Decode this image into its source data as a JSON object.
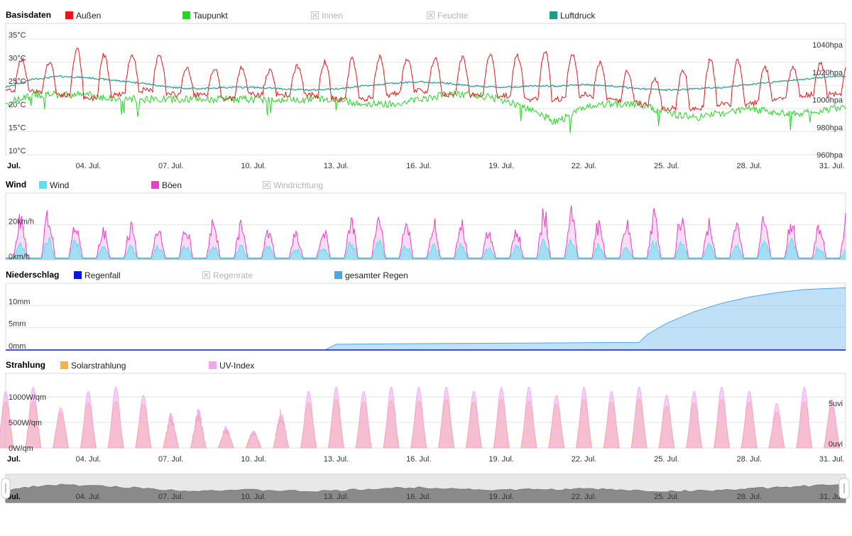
{
  "x_axis": {
    "start_label": "Jul.",
    "labels": [
      "04. Jul.",
      "07. Jul.",
      "10. Jul.",
      "13. Jul.",
      "16. Jul.",
      "19. Jul.",
      "22. Jul.",
      "25. Jul.",
      "28. Jul.",
      "31. Jul."
    ],
    "domain": [
      1,
      31.5
    ]
  },
  "navigator": {
    "start_label": "Jul.",
    "labels": [
      "04. Jul.",
      "07. Jul.",
      "10. Jul.",
      "13. Jul.",
      "16. Jul.",
      "19. Jul.",
      "22. Jul.",
      "25. Jul.",
      "28. Jul.",
      "31. Jul."
    ]
  },
  "chart_data": [
    {
      "type": "line",
      "title": "Basisdaten",
      "legend": [
        {
          "name": "Außen",
          "color": "#e8161a",
          "enabled": true
        },
        {
          "name": "Taupunkt",
          "color": "#26d626",
          "enabled": true
        },
        {
          "name": "Innen",
          "color": "#cccccc",
          "enabled": false
        },
        {
          "name": "Feuchte",
          "color": "#cccccc",
          "enabled": false
        },
        {
          "name": "Luftdruck",
          "color": "#22998a",
          "enabled": true
        }
      ],
      "y_left": {
        "ticks": [
          "10°C",
          "15°C",
          "20°C",
          "25°C",
          "30°C",
          "35°C"
        ],
        "range": [
          10,
          35
        ]
      },
      "y_right": {
        "ticks": [
          "960hpa",
          "980hpa",
          "1000hpa",
          "1020hpa",
          "1040hpa"
        ],
        "range": [
          960,
          1040
        ]
      },
      "series": [
        {
          "name": "Außen",
          "unit": "°C",
          "x": [
            1,
            2,
            3,
            4,
            5,
            6,
            7,
            8,
            9,
            10,
            11,
            12,
            13,
            14,
            15,
            16,
            17,
            18,
            19,
            20,
            21,
            22,
            23,
            24,
            25,
            26,
            27,
            28,
            29,
            30,
            31
          ],
          "max": [
            33,
            29,
            31,
            34,
            30,
            33,
            31,
            27,
            30,
            28,
            28,
            30,
            30,
            31,
            31,
            30,
            31,
            31,
            32,
            31,
            33,
            31,
            29,
            27,
            26,
            30,
            31,
            30,
            28,
            29,
            30
          ],
          "min": [
            24,
            24,
            23,
            22,
            23,
            24,
            23,
            23,
            22,
            23,
            23,
            23,
            22,
            22,
            23,
            24,
            23,
            23,
            23,
            22,
            22,
            23,
            22,
            21,
            20,
            20,
            21,
            21,
            22,
            23,
            23
          ]
        },
        {
          "name": "Taupunkt",
          "unit": "°C",
          "x": [
            1,
            2,
            3,
            4,
            5,
            6,
            7,
            8,
            9,
            10,
            11,
            12,
            13,
            14,
            15,
            16,
            17,
            18,
            19,
            20,
            21,
            22,
            23,
            24,
            25,
            26,
            27,
            28,
            29,
            30,
            31
          ],
          "values": [
            21,
            23,
            23,
            23,
            22,
            22,
            22,
            22,
            22,
            22,
            22,
            22,
            22,
            21,
            21,
            22,
            23,
            23,
            22,
            20,
            17,
            20,
            21,
            21,
            19,
            18,
            19,
            20,
            19,
            19,
            20
          ]
        },
        {
          "name": "Luftdruck",
          "unit": "hpa",
          "x": [
            1,
            2,
            3,
            4,
            5,
            6,
            7,
            8,
            9,
            10,
            11,
            12,
            13,
            14,
            15,
            16,
            17,
            18,
            19,
            20,
            21,
            22,
            23,
            24,
            25,
            26,
            27,
            28,
            29,
            30,
            31
          ],
          "values": [
            1009,
            1015,
            1017,
            1016,
            1014,
            1012,
            1009,
            1008,
            1009,
            1009,
            1008,
            1007,
            1008,
            1010,
            1012,
            1013,
            1012,
            1010,
            1009,
            1010,
            1010,
            1011,
            1010,
            1008,
            1007,
            1008,
            1009,
            1011,
            1013,
            1015,
            1017
          ]
        }
      ]
    },
    {
      "type": "area",
      "title": "Wind",
      "legend": [
        {
          "name": "Wind",
          "color": "#5be0ee",
          "enabled": true
        },
        {
          "name": "Böen",
          "color": "#ea3ec7",
          "enabled": true
        },
        {
          "name": "Windrichtung",
          "color": "#cccccc",
          "enabled": false
        }
      ],
      "y_left": {
        "ticks": [
          "0km/h",
          "20km/h"
        ],
        "range": [
          0,
          40
        ]
      },
      "series": [
        {
          "name": "Wind",
          "unit": "km/h",
          "x": [
            1,
            2,
            3,
            4,
            5,
            6,
            7,
            8,
            9,
            10,
            11,
            12,
            13,
            14,
            15,
            16,
            17,
            18,
            19,
            20,
            21,
            22,
            23,
            24,
            25,
            26,
            27,
            28,
            29,
            30,
            31
          ],
          "daily_peak": [
            9,
            10,
            15,
            8,
            7,
            8,
            8,
            9,
            9,
            8,
            7,
            6,
            8,
            12,
            10,
            8,
            10,
            8,
            6,
            9,
            14,
            11,
            6,
            10,
            12,
            10,
            8,
            9,
            15,
            8,
            7
          ]
        },
        {
          "name": "Böen",
          "unit": "km/h",
          "x": [
            1,
            2,
            3,
            4,
            5,
            6,
            7,
            8,
            9,
            10,
            11,
            12,
            13,
            14,
            15,
            16,
            17,
            18,
            19,
            20,
            21,
            22,
            23,
            24,
            25,
            26,
            27,
            28,
            29,
            30,
            31
          ],
          "daily_peak": [
            25,
            26,
            31,
            20,
            17,
            22,
            20,
            23,
            23,
            19,
            16,
            17,
            19,
            27,
            25,
            22,
            26,
            20,
            17,
            20,
            36,
            27,
            18,
            26,
            30,
            26,
            20,
            24,
            32,
            16,
            26
          ]
        }
      ]
    },
    {
      "type": "area",
      "title": "Niederschlag",
      "legend": [
        {
          "name": "Regenfall",
          "color": "#0a16cf",
          "enabled": true
        },
        {
          "name": "Regenrate",
          "color": "#cccccc",
          "enabled": false
        },
        {
          "name": "gesamter Regen",
          "color": "#4aa7e8",
          "enabled": true
        }
      ],
      "y_left": {
        "ticks": [
          "0mm",
          "5mm",
          "10mm"
        ],
        "range": [
          0,
          15
        ]
      },
      "series": [
        {
          "name": "gesamter Regen",
          "unit": "mm",
          "x": [
            1,
            12.6,
            13,
            15,
            18,
            21,
            24.0,
            24.3,
            25,
            26,
            27,
            28,
            29,
            30,
            31.5
          ],
          "values": [
            0,
            0,
            1.3,
            1.4,
            1.5,
            1.6,
            1.7,
            3.5,
            6.0,
            8.6,
            10.5,
            11.9,
            12.9,
            13.6,
            14
          ]
        },
        {
          "name": "Regenfall",
          "unit": "mm",
          "x": [
            1,
            31.5
          ],
          "values": [
            0,
            0
          ]
        }
      ]
    },
    {
      "type": "area",
      "title": "Strahlung",
      "legend": [
        {
          "name": "Solarstrahlung",
          "color": "#f7b145",
          "enabled": true
        },
        {
          "name": "UV-Index",
          "color": "#f2a6f0",
          "enabled": true
        }
      ],
      "y_left": {
        "ticks": [
          "0W/qm",
          "500W/qm",
          "1000W/qm"
        ],
        "range": [
          0,
          1000
        ]
      },
      "y_right": {
        "ticks": [
          "0uvi",
          "5uvi"
        ],
        "range": [
          0,
          8
        ]
      },
      "series": [
        {
          "name": "Solarstrahlung",
          "unit": "W/qm",
          "x": [
            1,
            2,
            3,
            4,
            5,
            6,
            7,
            8,
            9,
            10,
            11,
            12,
            13,
            14,
            15,
            16,
            17,
            18,
            19,
            20,
            21,
            22,
            23,
            24,
            25,
            26,
            27,
            28,
            29,
            30,
            31
          ],
          "daily_peak": [
            900,
            920,
            700,
            880,
            900,
            850,
            550,
            600,
            350,
            300,
            600,
            880,
            950,
            900,
            920,
            920,
            950,
            900,
            950,
            920,
            850,
            950,
            900,
            960,
            820,
            880,
            950,
            900,
            700,
            900,
            800
          ]
        },
        {
          "name": "UV-Index",
          "unit": "uvi",
          "x": [
            1,
            2,
            3,
            4,
            5,
            6,
            7,
            8,
            9,
            10,
            11,
            12,
            13,
            14,
            15,
            16,
            17,
            18,
            19,
            20,
            21,
            22,
            23,
            24,
            25,
            26,
            27,
            28,
            29,
            30,
            31
          ],
          "daily_peak": [
            7,
            7.5,
            5,
            7,
            7.5,
            6.5,
            4,
            4.5,
            2.5,
            2,
            4.5,
            7,
            7.5,
            7,
            7.5,
            7.5,
            7.5,
            7,
            7.5,
            7.5,
            6.5,
            7.5,
            7,
            7.5,
            6.5,
            7,
            7.5,
            7,
            5.5,
            7.5,
            6
          ]
        }
      ]
    }
  ]
}
